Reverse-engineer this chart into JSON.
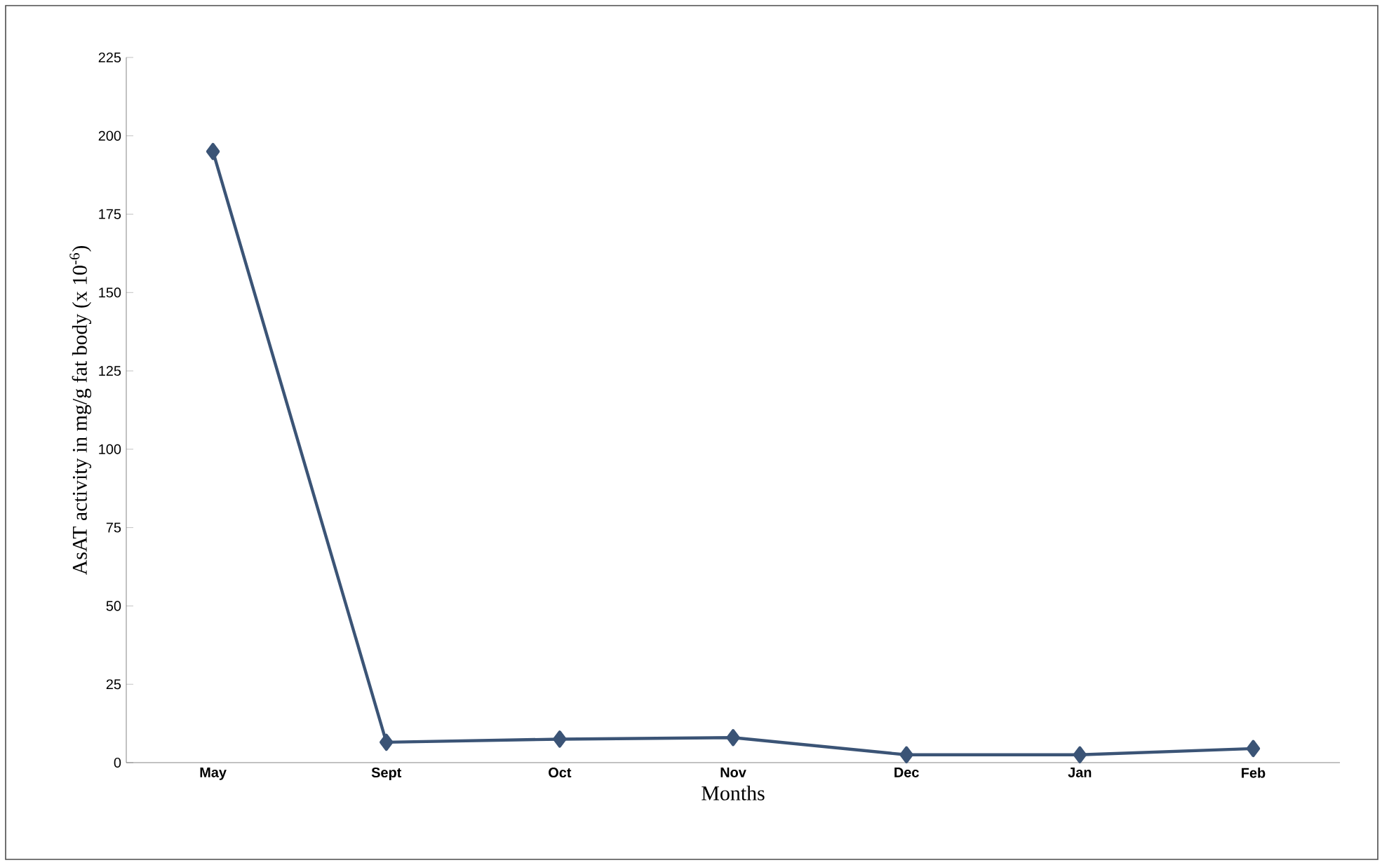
{
  "chart_data": {
    "type": "line",
    "xlabel": "Months",
    "ylabel": "AsAT activity in mg/g fat body (x 10$^{-6}$)",
    "categories": [
      "May",
      "Sept",
      "Oct",
      "Nov",
      "Dec",
      "Jan",
      "Feb"
    ],
    "series": [
      {
        "color": "#3b5476",
        "values": [
          195,
          6.5,
          7.5,
          8,
          2.5,
          2.5,
          4.5
        ]
      }
    ],
    "ylim": [
      0,
      225
    ],
    "yticks": [
      0,
      25,
      50,
      75,
      100,
      125,
      150,
      175,
      200,
      225
    ],
    "grid": false,
    "marker": "diamond",
    "line_style": "solid"
  }
}
